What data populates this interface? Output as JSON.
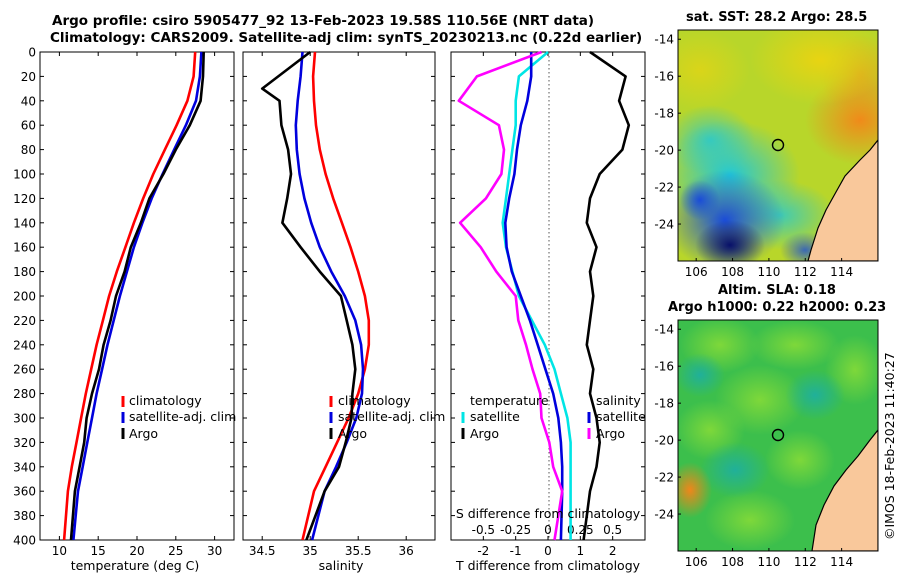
{
  "header": {
    "title_line1": "Argo profile: csiro 5905477_92 13-Feb-2023 19.58S 110.56E (NRT data)",
    "title_line2": "Climatology: CARS2009. Satellite-adj clim: synTS_20230213.nc (0.22d earlier)"
  },
  "sst_map": {
    "title": "sat. SST: 28.2  Argo: 28.5"
  },
  "sla_map": {
    "title_line1": "Altim. SLA: 0.18",
    "title_line2": "Argo h1000: 0.22 h2000: 0.23"
  },
  "credit": "©IMOS 18-Feb-2023 11:40:27",
  "colors": {
    "climatology": "#ff0000",
    "satellite": "#0000dd",
    "argo": "#000000",
    "temp_diff": "#00e5e5",
    "sal_diff": "#ff00ff",
    "land": "#f9c89b"
  },
  "chart_data": [
    {
      "type": "line",
      "name": "temperature-profile",
      "xlabel": "temperature (deg C)",
      "ylabel": "",
      "xlim": [
        7.5,
        32.5
      ],
      "ylim": [
        400,
        0
      ],
      "xticks": [
        "10",
        "15",
        "20",
        "25",
        "30"
      ],
      "yticks": [
        "0",
        "20",
        "40",
        "60",
        "80",
        "100",
        "120",
        "140",
        "160",
        "180",
        "200",
        "220",
        "240",
        "260",
        "280",
        "300",
        "320",
        "340",
        "360",
        "380",
        "400"
      ],
      "legend": [
        "climatology",
        "satellite-adj. clim",
        "Argo"
      ],
      "legend_position": "center-right",
      "series": [
        {
          "name": "climatology",
          "color": "#ff0000",
          "x": [
            27.5,
            27.3,
            26.5,
            25.1,
            23.6,
            22.1,
            20.8,
            19.6,
            18.5,
            17.4,
            16.4,
            15.6,
            14.8,
            14.1,
            13.4,
            12.8,
            12.2,
            11.6,
            11.1,
            10.6
          ],
          "y": [
            0,
            20,
            40,
            60,
            80,
            100,
            120,
            140,
            160,
            180,
            200,
            220,
            240,
            260,
            280,
            300,
            320,
            340,
            360,
            400
          ]
        },
        {
          "name": "satellite-adj. clim",
          "color": "#0000dd",
          "x": [
            28.3,
            28.1,
            27.6,
            26.3,
            24.8,
            23.3,
            21.9,
            20.7,
            19.6,
            18.7,
            17.8,
            17.0,
            16.2,
            15.5,
            14.8,
            14.2,
            13.6,
            13.0,
            12.4,
            11.8
          ],
          "y": [
            0,
            20,
            40,
            60,
            80,
            100,
            120,
            140,
            160,
            180,
            200,
            220,
            240,
            260,
            280,
            300,
            320,
            340,
            360,
            400
          ]
        },
        {
          "name": "Argo",
          "color": "#000000",
          "x": [
            28.6,
            28.5,
            28.2,
            26.8,
            25.0,
            23.4,
            21.6,
            20.5,
            19.2,
            18.4,
            17.3,
            16.6,
            15.7,
            15.1,
            14.2,
            13.5,
            13.2,
            12.6,
            12.0,
            11.5
          ],
          "y": [
            0,
            20,
            40,
            60,
            80,
            100,
            120,
            140,
            160,
            180,
            200,
            220,
            240,
            260,
            280,
            300,
            320,
            340,
            360,
            400
          ]
        }
      ]
    },
    {
      "type": "line",
      "name": "salinity-profile",
      "xlabel": "salinity",
      "xlim": [
        34.3,
        36.3
      ],
      "ylim": [
        400,
        0
      ],
      "xticks": [
        "34.5",
        "35",
        "35.5",
        "36"
      ],
      "legend": [
        "climatology",
        "satellite-adj. clim",
        "Argo"
      ],
      "legend_position": "center-right",
      "series": [
        {
          "name": "climatology",
          "color": "#ff0000",
          "x": [
            35.05,
            35.03,
            35.04,
            35.06,
            35.1,
            35.16,
            35.24,
            35.33,
            35.42,
            35.5,
            35.57,
            35.61,
            35.61,
            35.57,
            35.5,
            35.4,
            35.28,
            35.16,
            35.04,
            34.92
          ],
          "y": [
            0,
            20,
            40,
            60,
            80,
            100,
            120,
            140,
            160,
            180,
            200,
            220,
            240,
            260,
            280,
            300,
            320,
            340,
            360,
            400
          ]
        },
        {
          "name": "satellite-adj. clim",
          "color": "#0000dd",
          "x": [
            34.92,
            34.9,
            34.87,
            34.85,
            34.86,
            34.89,
            34.94,
            35.01,
            35.1,
            35.22,
            35.36,
            35.47,
            35.53,
            35.55,
            35.54,
            35.48,
            35.38,
            35.27,
            35.15,
            35.02
          ],
          "y": [
            0,
            20,
            40,
            60,
            80,
            100,
            120,
            140,
            160,
            180,
            200,
            220,
            240,
            260,
            280,
            300,
            320,
            340,
            360,
            400
          ]
        },
        {
          "name": "Argo",
          "color": "#000000",
          "x": [
            35.0,
            34.5,
            34.68,
            34.7,
            34.77,
            34.8,
            34.76,
            34.71,
            34.9,
            35.1,
            35.32,
            35.38,
            35.44,
            35.47,
            35.44,
            35.43,
            35.37,
            35.3,
            35.15,
            34.96
          ],
          "y": [
            0,
            30,
            40,
            60,
            80,
            100,
            120,
            140,
            160,
            180,
            200,
            220,
            240,
            260,
            280,
            300,
            320,
            340,
            360,
            400
          ]
        }
      ]
    },
    {
      "type": "line",
      "name": "difference-profile",
      "xlabel": "T difference from climatology",
      "x2label": "S difference from climatology",
      "xlim": [
        -3,
        3
      ],
      "x2lim": [
        -0.75,
        0.75
      ],
      "ylim": [
        400,
        0
      ],
      "xticks": [
        "-2",
        "-1",
        "0",
        "1",
        "2"
      ],
      "x2ticks": [
        "-0.5",
        "-0.25",
        "0",
        "0.25",
        "0.5"
      ],
      "legend_left_title": "temperature",
      "legend_right_title": "salinity",
      "legend_left": [
        "satellite",
        "Argo"
      ],
      "legend_right": [
        "satellite",
        "Argo"
      ],
      "series": [
        {
          "name": "temperature satellite",
          "color": "#00e5e5",
          "axis": "T",
          "x": [
            0.0,
            -0.9,
            -1.0,
            -1.0,
            -1.1,
            -1.2,
            -1.3,
            -1.4,
            -1.3,
            -1.1,
            -0.9,
            -0.5,
            -0.1,
            0.2,
            0.4,
            0.6,
            0.7,
            0.7,
            0.7,
            0.7
          ],
          "y": [
            0,
            20,
            40,
            60,
            80,
            100,
            120,
            140,
            160,
            180,
            200,
            220,
            240,
            260,
            280,
            300,
            320,
            340,
            360,
            400
          ]
        },
        {
          "name": "temperature Argo",
          "color": "#000000",
          "axis": "T",
          "x": [
            1.3,
            2.4,
            2.2,
            2.5,
            2.3,
            1.6,
            1.3,
            1.2,
            1.5,
            1.3,
            1.4,
            1.3,
            1.2,
            1.4,
            1.3,
            1.5,
            1.6,
            1.5,
            1.3,
            1.1
          ],
          "y": [
            0,
            20,
            40,
            60,
            80,
            100,
            120,
            140,
            160,
            180,
            200,
            220,
            240,
            260,
            280,
            300,
            320,
            340,
            360,
            400
          ]
        },
        {
          "name": "salinity satellite",
          "color": "#0000dd",
          "axis": "S",
          "x": [
            -0.13,
            -0.13,
            -0.16,
            -0.21,
            -0.24,
            -0.26,
            -0.3,
            -0.33,
            -0.32,
            -0.28,
            -0.21,
            -0.14,
            -0.08,
            -0.02,
            0.04,
            0.08,
            0.1,
            0.11,
            0.11,
            0.1
          ],
          "y": [
            0,
            20,
            40,
            60,
            80,
            100,
            120,
            140,
            160,
            180,
            200,
            220,
            240,
            260,
            280,
            300,
            320,
            340,
            360,
            400
          ]
        },
        {
          "name": "salinity Argo",
          "color": "#ff00ff",
          "axis": "S",
          "x": [
            -0.05,
            -0.55,
            -0.69,
            -0.38,
            -0.34,
            -0.36,
            -0.48,
            -0.68,
            -0.52,
            -0.4,
            -0.25,
            -0.23,
            -0.17,
            -0.12,
            -0.06,
            -0.05,
            0.01,
            0.04,
            0.11,
            0.05
          ],
          "y": [
            0,
            20,
            40,
            60,
            80,
            100,
            120,
            140,
            160,
            180,
            200,
            220,
            240,
            260,
            280,
            300,
            320,
            340,
            360,
            400
          ]
        }
      ]
    },
    {
      "type": "heatmap",
      "name": "sst-map",
      "xlim": [
        105,
        116
      ],
      "ylim": [
        -26,
        -13.5
      ],
      "xticks": [
        "106",
        "108",
        "110",
        "112",
        "114"
      ],
      "yticks": [
        "-14",
        "-16",
        "-18",
        "-20",
        "-22",
        "-24"
      ],
      "argo_position": {
        "lon": 110.56,
        "lat": -19.58
      }
    },
    {
      "type": "heatmap",
      "name": "sla-map",
      "xlim": [
        105,
        116
      ],
      "ylim": [
        -26,
        -13.5
      ],
      "xticks": [
        "106",
        "108",
        "110",
        "112",
        "114"
      ],
      "yticks": [
        "-14",
        "-16",
        "-18",
        "-20",
        "-22",
        "-24"
      ],
      "argo_position": {
        "lon": 110.56,
        "lat": -19.58
      }
    }
  ]
}
